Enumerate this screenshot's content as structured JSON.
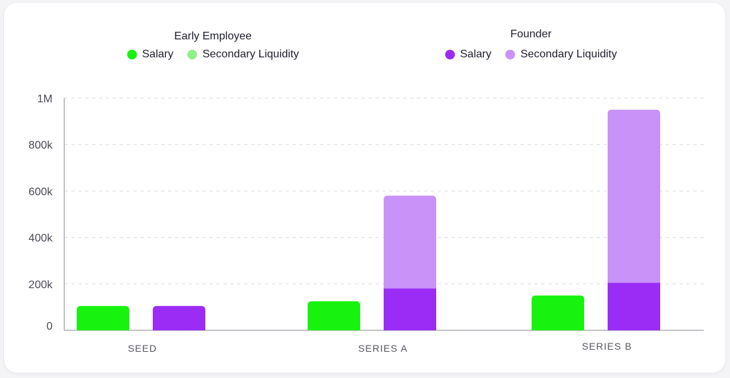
{
  "legend": {
    "early_employee": {
      "title": "Early Employee",
      "items": [
        {
          "label": "Salary",
          "color": "#17f30f"
        },
        {
          "label": "Secondary Liquidity",
          "color": "#8ff08b"
        }
      ]
    },
    "founder": {
      "title": "Founder",
      "items": [
        {
          "label": "Salary",
          "color": "#9b2cf6"
        },
        {
          "label": "Secondary Liquidity",
          "color": "#c892f8"
        }
      ]
    }
  },
  "chart_data": {
    "type": "bar",
    "stacked": true,
    "categories": [
      "SEED",
      "SERIES A",
      "SERIES B"
    ],
    "ylim": [
      0,
      1000000
    ],
    "yticks": [
      {
        "value": 0,
        "label": "0"
      },
      {
        "value": 200000,
        "label": "200k"
      },
      {
        "value": 400000,
        "label": "400k"
      },
      {
        "value": 600000,
        "label": "600k"
      },
      {
        "value": 800000,
        "label": "800k"
      },
      {
        "value": 1000000,
        "label": "1M"
      }
    ],
    "grid": true,
    "legend_position": "top",
    "groups": [
      {
        "name": "Early Employee",
        "series": [
          {
            "name": "Salary",
            "color": "#17f30f",
            "values": [
              105000,
              125000,
              150000
            ]
          },
          {
            "name": "Secondary Liquidity",
            "color": "#8ff08b",
            "values": [
              0,
              0,
              0
            ]
          }
        ]
      },
      {
        "name": "Founder",
        "series": [
          {
            "name": "Salary",
            "color": "#9b2cf6",
            "values": [
              105000,
              180000,
              205000
            ]
          },
          {
            "name": "Secondary Liquidity",
            "color": "#c892f8",
            "values": [
              0,
              400000,
              745000
            ]
          }
        ]
      }
    ]
  }
}
